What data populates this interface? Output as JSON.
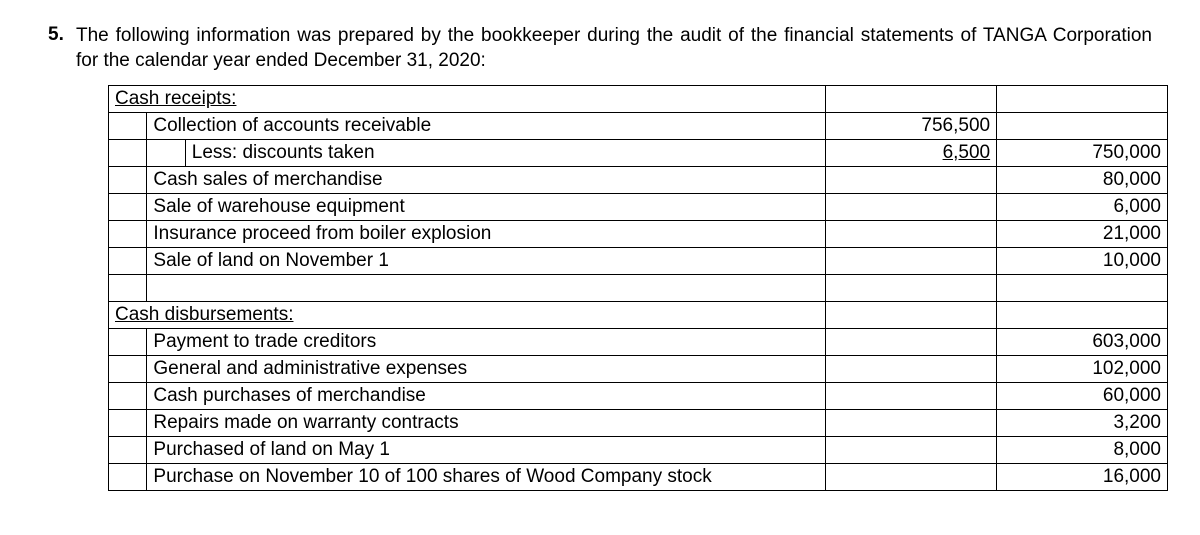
{
  "question": {
    "number": "5.",
    "text": "The following information was prepared by the bookkeeper during the audit of the financial statements of TANGA Corporation for the calendar year ended December 31, 2020:"
  },
  "sections": [
    {
      "header": "Cash receipts:",
      "rows": [
        {
          "indent": 1,
          "desc": "Collection of accounts receivable",
          "amt1": "756,500",
          "amt2": "",
          "u1": false
        },
        {
          "indent": 2,
          "desc": "Less: discounts taken",
          "amt1": "6,500",
          "amt2": "750,000",
          "u1": true
        },
        {
          "indent": 1,
          "desc": "Cash sales of merchandise",
          "amt1": "",
          "amt2": "80,000",
          "u1": false
        },
        {
          "indent": 1,
          "desc": "Sale of warehouse equipment",
          "amt1": "",
          "amt2": "6,000",
          "u1": false
        },
        {
          "indent": 1,
          "desc": "Insurance proceed from boiler explosion",
          "amt1": "",
          "amt2": "21,000",
          "u1": false
        },
        {
          "indent": 1,
          "desc": "Sale of land on November 1",
          "amt1": "",
          "amt2": "10,000",
          "u1": false
        }
      ]
    },
    {
      "header": "Cash disbursements:",
      "rows": [
        {
          "indent": 1,
          "desc": "Payment to trade creditors",
          "amt1": "",
          "amt2": "603,000",
          "u1": false
        },
        {
          "indent": 1,
          "desc": "General and administrative expenses",
          "amt1": "",
          "amt2": "102,000",
          "u1": false
        },
        {
          "indent": 1,
          "desc": "Cash purchases of merchandise",
          "amt1": "",
          "amt2": "60,000",
          "u1": false
        },
        {
          "indent": 1,
          "desc": "Repairs made on warranty contracts",
          "amt1": "",
          "amt2": "3,200",
          "u1": false
        },
        {
          "indent": 1,
          "desc": "Purchased of land on May 1",
          "amt1": "",
          "amt2": "8,000",
          "u1": false
        },
        {
          "indent": 1,
          "desc": "Purchase on November 10 of 100 shares of Wood Company stock",
          "amt1": "",
          "amt2": "16,000",
          "u1": false
        }
      ]
    }
  ]
}
